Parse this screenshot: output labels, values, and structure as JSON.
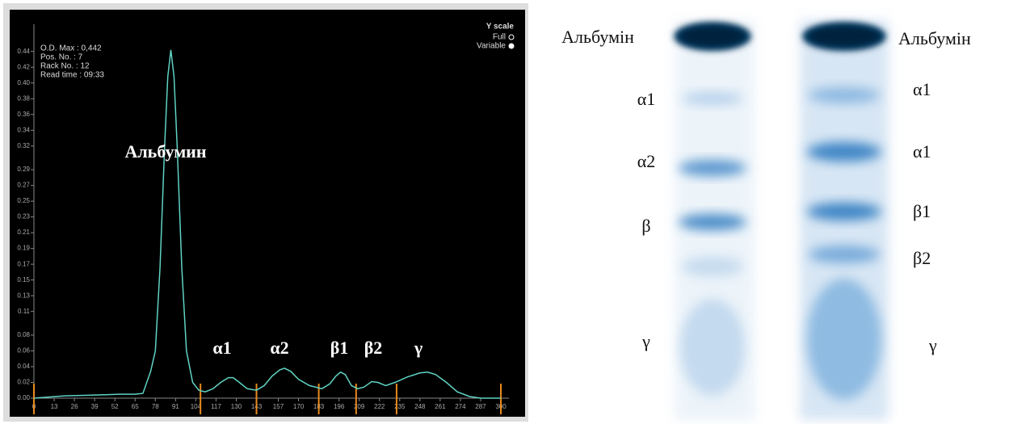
{
  "chart_data": {
    "type": "line",
    "info": [
      "O.D. Max : 0,442",
      "Pos. No.   : 7",
      "Rack No.  : 12",
      "Read time : 09:33"
    ],
    "scale_title": "Y scale",
    "scale_options": [
      "Full",
      "Variable"
    ],
    "peak_labels": [
      "Альбумин",
      "α1",
      "α2",
      "β1",
      "β2",
      "γ"
    ],
    "color": "#5fd3c4",
    "marker_color": "#e8891c",
    "x": [
      0,
      20,
      40,
      55,
      65,
      70,
      75,
      78,
      81,
      84,
      86,
      88,
      90,
      92,
      95,
      98,
      102,
      106,
      110,
      115,
      120,
      125,
      128,
      132,
      137,
      143,
      148,
      153,
      158,
      161,
      165,
      170,
      177,
      185,
      190,
      194,
      197,
      200,
      204,
      208,
      212,
      217,
      221,
      226,
      232,
      240,
      248,
      253,
      258,
      265,
      272,
      280,
      287,
      295,
      300
    ],
    "values": [
      0.0,
      0.003,
      0.004,
      0.005,
      0.005,
      0.006,
      0.034,
      0.06,
      0.166,
      0.32,
      0.408,
      0.442,
      0.408,
      0.32,
      0.166,
      0.06,
      0.02,
      0.01,
      0.008,
      0.012,
      0.02,
      0.026,
      0.026,
      0.02,
      0.012,
      0.01,
      0.016,
      0.028,
      0.036,
      0.038,
      0.034,
      0.024,
      0.016,
      0.012,
      0.018,
      0.028,
      0.033,
      0.03,
      0.016,
      0.012,
      0.014,
      0.021,
      0.02,
      0.016,
      0.02,
      0.027,
      0.032,
      0.033,
      0.03,
      0.02,
      0.008,
      0.002,
      0.0,
      0.0,
      0.0
    ],
    "fraction_marks": [
      0,
      107,
      143,
      183,
      207,
      233,
      300
    ],
    "xlim": [
      0,
      300
    ],
    "ylim": [
      0,
      0.45
    ],
    "xticks": [
      0,
      13,
      26,
      39,
      52,
      65,
      78,
      91,
      104,
      117,
      130,
      143,
      157,
      170,
      183,
      196,
      209,
      222,
      235,
      248,
      261,
      274,
      287,
      300
    ],
    "yticks": [
      {
        "value": 0,
        "label": "0.00"
      },
      {
        "value": 0.02,
        "label": "0.02"
      },
      {
        "value": 0.04,
        "label": "0.04"
      },
      {
        "value": 0.06,
        "label": "0.06"
      },
      {
        "value": 0.08,
        "label": "0.08"
      },
      {
        "value": 0.11,
        "label": "0.11"
      },
      {
        "value": 0.13,
        "label": "0.13"
      },
      {
        "value": 0.15,
        "label": "0.15"
      },
      {
        "value": 0.17,
        "label": "0.17"
      },
      {
        "value": 0.19,
        "label": "0.19"
      },
      {
        "value": 0.21,
        "label": "0.21"
      },
      {
        "value": 0.23,
        "label": "0.23"
      },
      {
        "value": 0.25,
        "label": "0.25"
      },
      {
        "value": 0.27,
        "label": "0.27"
      },
      {
        "value": 0.29,
        "label": "0.29"
      },
      {
        "value": 0.32,
        "label": "0.32"
      },
      {
        "value": 0.34,
        "label": "0.34"
      },
      {
        "value": 0.36,
        "label": "0.36"
      },
      {
        "value": 0.38,
        "label": "0.38"
      },
      {
        "value": 0.4,
        "label": "0.40"
      },
      {
        "value": 0.42,
        "label": "0.42"
      },
      {
        "value": 0.44,
        "label": "0.44"
      }
    ]
  },
  "gel": {
    "left_labels": [
      "Альбумін",
      "α1",
      "α2",
      "β",
      "γ"
    ],
    "right_labels": [
      "Альбумін",
      "α1",
      "α1",
      "β1",
      "β2",
      "γ"
    ]
  }
}
